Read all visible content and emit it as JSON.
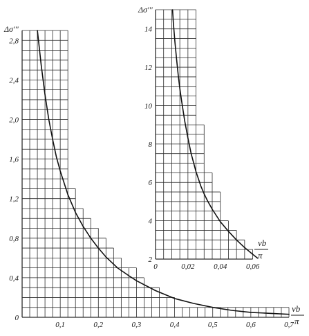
{
  "chart_data": [
    {
      "type": "line",
      "title": "",
      "ylabel": "Δσ'''",
      "xlabel": "ν b / π",
      "xlim": [
        0,
        0.7
      ],
      "ylim": [
        0,
        2.9
      ],
      "x_ticks": [
        {
          "value": 0.1,
          "label": "0,1"
        },
        {
          "value": 0.2,
          "label": "0,2"
        },
        {
          "value": 0.3,
          "label": "0,3"
        },
        {
          "value": 0.4,
          "label": "0,4"
        },
        {
          "value": 0.5,
          "label": "0,5"
        },
        {
          "value": 0.6,
          "label": "0,6"
        },
        {
          "value": 0.7,
          "label": "0,7"
        }
      ],
      "y_ticks": [
        {
          "value": 0,
          "label": "0"
        },
        {
          "value": 0.4,
          "label": "0,4"
        },
        {
          "value": 0.8,
          "label": "0,8"
        },
        {
          "value": 1.2,
          "label": "1,2"
        },
        {
          "value": 1.6,
          "label": "1,6"
        },
        {
          "value": 2.0,
          "label": "2,0"
        },
        {
          "value": 2.4,
          "label": "2,4"
        },
        {
          "value": 2.8,
          "label": "2,8"
        }
      ],
      "grid": true,
      "grid_step": {
        "x": 0.02,
        "y": 0.1
      },
      "grid_envelope": [
        {
          "x_end": 0.12,
          "y_top": 2.9
        },
        {
          "x_end": 0.14,
          "y_top": 1.3
        },
        {
          "x_end": 0.16,
          "y_top": 1.1
        },
        {
          "x_end": 0.18,
          "y_top": 1.0
        },
        {
          "x_end": 0.2,
          "y_top": 0.9
        },
        {
          "x_end": 0.22,
          "y_top": 0.8
        },
        {
          "x_end": 0.24,
          "y_top": 0.7
        },
        {
          "x_end": 0.26,
          "y_top": 0.6
        },
        {
          "x_end": 0.3,
          "y_top": 0.5
        },
        {
          "x_end": 0.32,
          "y_top": 0.4
        },
        {
          "x_end": 0.36,
          "y_top": 0.3
        },
        {
          "x_end": 0.4,
          "y_top": 0.2
        },
        {
          "x_end": 0.7,
          "y_top": 0.1
        }
      ],
      "series": [
        {
          "values_x": [
            0.04,
            0.05,
            0.06,
            0.07,
            0.08,
            0.09,
            0.1,
            0.12,
            0.14,
            0.16,
            0.18,
            0.2,
            0.22,
            0.25,
            0.28,
            0.3,
            0.35,
            0.4,
            0.45,
            0.5,
            0.55,
            0.6,
            0.65,
            0.7
          ],
          "values_y": [
            2.9,
            2.55,
            2.25,
            2.0,
            1.8,
            1.62,
            1.48,
            1.24,
            1.06,
            0.92,
            0.8,
            0.7,
            0.61,
            0.5,
            0.42,
            0.37,
            0.27,
            0.19,
            0.14,
            0.1,
            0.07,
            0.05,
            0.04,
            0.03
          ]
        }
      ]
    },
    {
      "type": "line",
      "title": "",
      "ylabel": "Δσ'''",
      "xlabel": "ν b / π",
      "xlim": [
        0,
        0.07
      ],
      "ylim": [
        2,
        15
      ],
      "x_ticks": [
        {
          "value": 0,
          "label": "0"
        },
        {
          "value": 0.02,
          "label": "0,02"
        },
        {
          "value": 0.04,
          "label": "0,04"
        },
        {
          "value": 0.06,
          "label": "0,06"
        }
      ],
      "y_ticks": [
        {
          "value": 2,
          "label": "2"
        },
        {
          "value": 4,
          "label": "4"
        },
        {
          "value": 6,
          "label": "6"
        },
        {
          "value": 8,
          "label": "8"
        },
        {
          "value": 10,
          "label": "10"
        },
        {
          "value": 12,
          "label": "12"
        },
        {
          "value": 14,
          "label": "14"
        }
      ],
      "grid": true,
      "grid_step": {
        "x": 0.005,
        "y": 0.5
      },
      "grid_envelope": [
        {
          "x_end": 0.025,
          "y_top": 15
        },
        {
          "x_end": 0.03,
          "y_top": 9
        },
        {
          "x_end": 0.035,
          "y_top": 6.5
        },
        {
          "x_end": 0.04,
          "y_top": 5.5
        },
        {
          "x_end": 0.045,
          "y_top": 4
        },
        {
          "x_end": 0.05,
          "y_top": 3.5
        },
        {
          "x_end": 0.055,
          "y_top": 3.0
        },
        {
          "x_end": 0.06,
          "y_top": 2.5
        }
      ],
      "series": [
        {
          "values_x": [
            0.0105,
            0.011,
            0.012,
            0.013,
            0.014,
            0.015,
            0.016,
            0.018,
            0.02,
            0.022,
            0.025,
            0.028,
            0.03,
            0.032,
            0.035,
            0.04,
            0.045,
            0.05,
            0.055,
            0.06,
            0.063
          ],
          "values_y": [
            15,
            14.3,
            13.3,
            12.4,
            11.6,
            10.9,
            10.3,
            9.2,
            8.3,
            7.5,
            6.55,
            5.8,
            5.4,
            5.05,
            4.6,
            3.95,
            3.45,
            3.0,
            2.6,
            2.25,
            2.05
          ]
        }
      ]
    }
  ]
}
